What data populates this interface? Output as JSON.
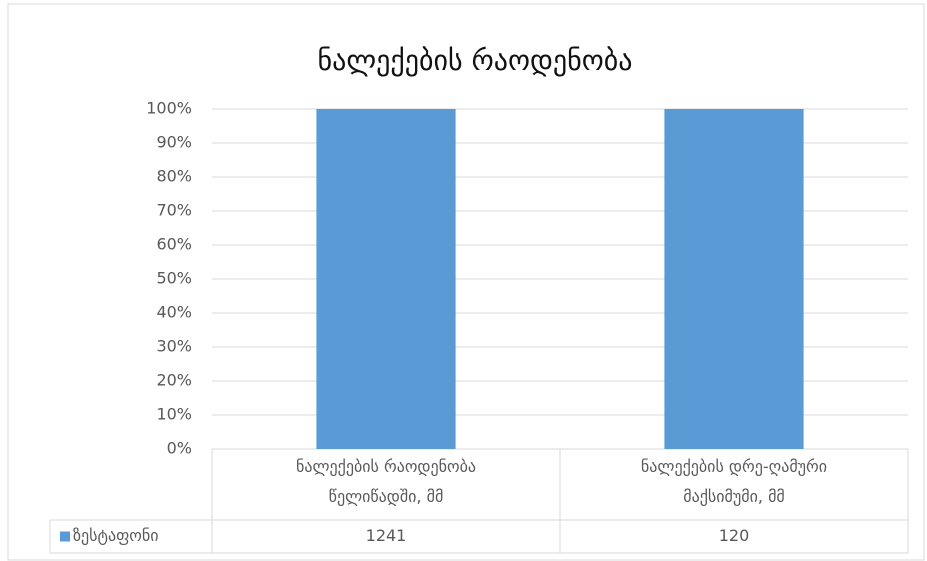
{
  "chart_data": {
    "type": "bar",
    "stacking": "percent",
    "title": "ნალექების რაოდენობა",
    "categories": [
      "ნალექების რაოდენობა წელიწადში, მმ",
      "ნალექების დრე-ღამური მაქსიმუმი, მმ"
    ],
    "series": [
      {
        "name": "ზესტაფონი",
        "color": "#5b9bd5",
        "values": [
          1241,
          120
        ]
      }
    ],
    "ylim": [
      0,
      100
    ],
    "yticks": [
      {
        "value": 0,
        "label": "0%"
      },
      {
        "value": 10,
        "label": "10%"
      },
      {
        "value": 20,
        "label": "20%"
      },
      {
        "value": 30,
        "label": "30%"
      },
      {
        "value": 40,
        "label": "40%"
      },
      {
        "value": 50,
        "label": "50%"
      },
      {
        "value": 60,
        "label": "60%"
      },
      {
        "value": 70,
        "label": "70%"
      },
      {
        "value": 80,
        "label": "80%"
      },
      {
        "value": 90,
        "label": "90%"
      },
      {
        "value": 100,
        "label": "100%"
      }
    ],
    "grid": true,
    "data_table": true
  }
}
